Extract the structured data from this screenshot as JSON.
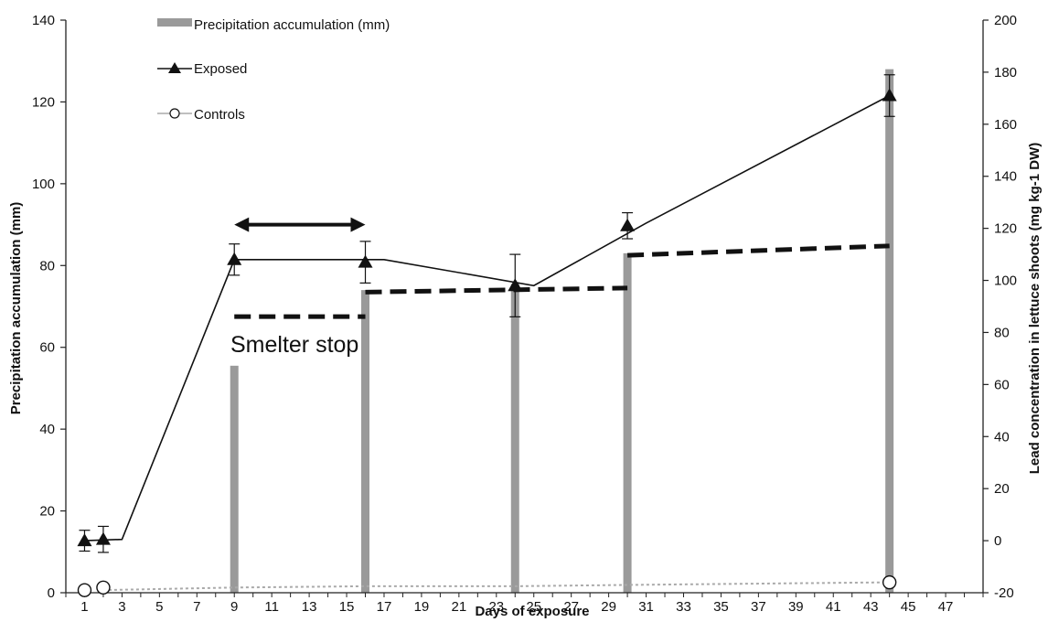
{
  "chart_data": {
    "type": "bar+line",
    "xlabel": "Days of exposure",
    "ylabel_left": "Precipitation accumulation (mm)",
    "ylabel_right": "Lead concentration in lettuce shoots (mg kg-1 DW)",
    "x_range": [
      0,
      49
    ],
    "x_ticks": [
      "1",
      "3",
      "5",
      "7",
      "9",
      "11",
      "13",
      "15",
      "17",
      "19",
      "21",
      "23",
      "25",
      "27",
      "29",
      "31",
      "33",
      "35",
      "37",
      "39",
      "41",
      "43",
      "45",
      "47"
    ],
    "left_ylim": [
      0,
      140
    ],
    "left_ticks": [
      "0",
      "20",
      "40",
      "60",
      "80",
      "100",
      "120",
      "140"
    ],
    "right_ylim": [
      -20,
      200
    ],
    "right_ticks": [
      "-20",
      "0",
      "20",
      "40",
      "60",
      "80",
      "100",
      "120",
      "140",
      "160",
      "180",
      "200"
    ],
    "legend": {
      "placement": "top-left",
      "items": [
        {
          "key": "precip",
          "label": "Precipitation accumulation (mm)",
          "symbol": "bar",
          "color": "#9a9a9a"
        },
        {
          "key": "exposed",
          "label": "Exposed",
          "symbol": "triangle-line",
          "color": "#111111"
        },
        {
          "key": "controls",
          "label": "Controls",
          "symbol": "circle-line",
          "color": "#aaaaaa"
        }
      ]
    },
    "precipitation_bars": {
      "axis": "left",
      "color": "#9a9a9a",
      "x": [
        9,
        16,
        24,
        30,
        44
      ],
      "values": [
        55.5,
        74,
        75.5,
        83,
        128
      ]
    },
    "cumulative_dashes": {
      "axis": "left",
      "color": "#111111",
      "segments": [
        {
          "x": [
            9,
            16
          ],
          "y": [
            67.5,
            67.5
          ]
        },
        {
          "x": [
            16,
            30
          ],
          "y": [
            73.5,
            74.5
          ]
        },
        {
          "x": [
            30,
            44
          ],
          "y": [
            82.5,
            84.8
          ]
        }
      ]
    },
    "series": [
      {
        "name": "Exposed",
        "axis": "right",
        "color": "#111111",
        "marker": "triangle",
        "points": [
          {
            "x": 1,
            "y": 0,
            "err": 4
          },
          {
            "x": 2,
            "y": 0.5,
            "err": 5
          },
          {
            "x": 9,
            "y": 108,
            "err": 6
          },
          {
            "x": 16,
            "y": 107,
            "err": 8
          },
          {
            "x": 24,
            "y": 98,
            "err": 12
          },
          {
            "x": 30,
            "y": 121,
            "err": 5
          },
          {
            "x": 44,
            "y": 171,
            "err": 8
          }
        ],
        "line": [
          [
            1,
            0
          ],
          [
            3,
            0.5
          ],
          [
            9,
            108
          ],
          [
            17,
            108
          ],
          [
            25,
            98
          ],
          [
            31,
            122
          ],
          [
            44,
            171
          ]
        ]
      },
      {
        "name": "Controls",
        "axis": "right",
        "color": "#aaaaaa",
        "marker": "circle",
        "points": [
          {
            "x": 1,
            "y": -19
          },
          {
            "x": 2,
            "y": -18
          },
          {
            "x": 44,
            "y": -16
          }
        ],
        "line": [
          [
            2,
            -19
          ],
          [
            9,
            -18
          ],
          [
            16,
            -17.5
          ],
          [
            24,
            -17.5
          ],
          [
            30,
            -17
          ],
          [
            44,
            -16
          ]
        ]
      }
    ],
    "annotation": {
      "text": "Smelter stop",
      "arrow_from_x": 9,
      "arrow_to_x": 16,
      "arrow_y_left": 90
    }
  }
}
